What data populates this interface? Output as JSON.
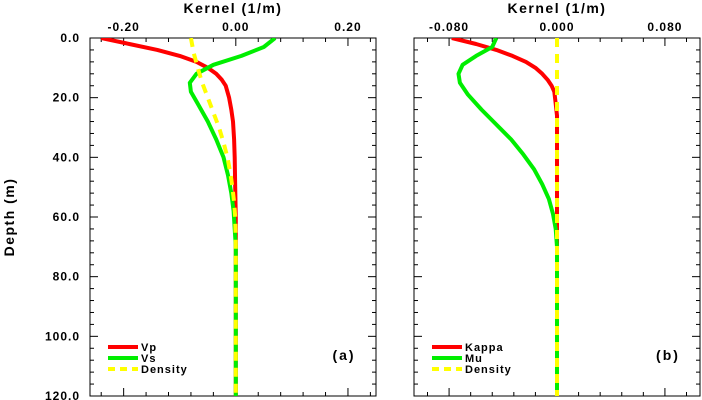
{
  "chart_data": [
    {
      "type": "line",
      "panel_label": "(a)",
      "xlabel": "Kernel (1/m)",
      "ylabel": "Depth (m)",
      "xlim": [
        -0.26,
        0.25
      ],
      "ylim": [
        0,
        120
      ],
      "y_inverted": true,
      "x_ticks": [
        -0.2,
        0.0,
        0.2
      ],
      "x_tick_labels": [
        "-0.20",
        "0.00",
        "0.20"
      ],
      "y_ticks": [
        0,
        20,
        40,
        60,
        80,
        100,
        120
      ],
      "y_tick_labels": [
        "0.0",
        "20.0",
        "40.0",
        "60.0",
        "80.0",
        "100.0",
        "120.0"
      ],
      "legend_position": "bottom-left",
      "series": [
        {
          "name": "Vp",
          "color": "#ff0000",
          "dashed": false,
          "points": [
            [
              -0.24,
              0
            ],
            [
              -0.19,
              2
            ],
            [
              -0.14,
              4
            ],
            [
              -0.1,
              6
            ],
            [
              -0.07,
              8
            ],
            [
              -0.05,
              10
            ],
            [
              -0.035,
              12
            ],
            [
              -0.025,
              14
            ],
            [
              -0.018,
              16
            ],
            [
              -0.012,
              20
            ],
            [
              -0.008,
              24
            ],
            [
              -0.005,
              28
            ],
            [
              -0.003,
              34
            ],
            [
              -0.002,
              40
            ],
            [
              -0.001,
              50
            ],
            [
              0.0,
              60
            ],
            [
              0.0,
              80
            ],
            [
              0.0,
              100
            ],
            [
              0.0,
              120
            ]
          ]
        },
        {
          "name": "Vs",
          "color": "#00ee00",
          "dashed": false,
          "points": [
            [
              0.07,
              0
            ],
            [
              0.05,
              3
            ],
            [
              0.01,
              6
            ],
            [
              -0.04,
              9
            ],
            [
              -0.07,
              12
            ],
            [
              -0.082,
              15
            ],
            [
              -0.08,
              18
            ],
            [
              -0.068,
              22
            ],
            [
              -0.05,
              28
            ],
            [
              -0.035,
              34
            ],
            [
              -0.022,
              40
            ],
            [
              -0.014,
              46
            ],
            [
              -0.008,
              52
            ],
            [
              -0.004,
              58
            ],
            [
              -0.002,
              64
            ],
            [
              0.0,
              70
            ],
            [
              0.0,
              80
            ],
            [
              0.0,
              100
            ],
            [
              0.0,
              120
            ]
          ]
        },
        {
          "name": "Density",
          "color": "#ffff00",
          "dashed": true,
          "points": [
            [
              -0.08,
              0
            ],
            [
              -0.075,
              5
            ],
            [
              -0.068,
              10
            ],
            [
              -0.06,
              15
            ],
            [
              -0.05,
              20
            ],
            [
              -0.04,
              25
            ],
            [
              -0.03,
              30
            ],
            [
              -0.022,
              35
            ],
            [
              -0.015,
              40
            ],
            [
              -0.01,
              45
            ],
            [
              -0.006,
              50
            ],
            [
              -0.003,
              55
            ],
            [
              -0.001,
              60
            ],
            [
              0.0,
              70
            ],
            [
              0.0,
              90
            ],
            [
              0.0,
              120
            ]
          ]
        }
      ]
    },
    {
      "type": "line",
      "panel_label": "(b)",
      "xlabel": "Kernel (1/m)",
      "ylabel": "",
      "xlim": [
        -0.106,
        0.106
      ],
      "ylim": [
        0,
        120
      ],
      "y_inverted": true,
      "x_ticks": [
        -0.08,
        0.0,
        0.08
      ],
      "x_tick_labels": [
        "-0.080",
        "0.000",
        "0.080"
      ],
      "legend_position": "bottom-left",
      "series": [
        {
          "name": "Kappa",
          "color": "#ff0000",
          "dashed": false,
          "points": [
            [
              -0.078,
              0
            ],
            [
              -0.06,
              2
            ],
            [
              -0.045,
              4
            ],
            [
              -0.033,
              6
            ],
            [
              -0.023,
              8
            ],
            [
              -0.016,
              10
            ],
            [
              -0.011,
              12
            ],
            [
              -0.007,
              14
            ],
            [
              -0.004,
              16
            ],
            [
              -0.002,
              18
            ],
            [
              -0.001,
              22
            ],
            [
              0.0,
              26
            ],
            [
              0.0,
              40
            ],
            [
              0.0,
              80
            ],
            [
              0.0,
              120
            ]
          ]
        },
        {
          "name": "Mu",
          "color": "#00ee00",
          "dashed": false,
          "points": [
            [
              -0.045,
              0
            ],
            [
              -0.048,
              3
            ],
            [
              -0.06,
              6
            ],
            [
              -0.07,
              9
            ],
            [
              -0.073,
              12
            ],
            [
              -0.072,
              15
            ],
            [
              -0.066,
              19
            ],
            [
              -0.056,
              24
            ],
            [
              -0.045,
              29
            ],
            [
              -0.034,
              34
            ],
            [
              -0.025,
              39
            ],
            [
              -0.017,
              44
            ],
            [
              -0.011,
              49
            ],
            [
              -0.006,
              54
            ],
            [
              -0.003,
              59
            ],
            [
              -0.001,
              64
            ],
            [
              0.0,
              70
            ],
            [
              0.0,
              80
            ],
            [
              0.0,
              100
            ],
            [
              0.0,
              120
            ]
          ]
        },
        {
          "name": "Density",
          "color": "#ffff00",
          "dashed": true,
          "points": [
            [
              0.0,
              0
            ],
            [
              0.0,
              40
            ],
            [
              0.0,
              80
            ],
            [
              0.0,
              120
            ]
          ]
        }
      ]
    }
  ]
}
